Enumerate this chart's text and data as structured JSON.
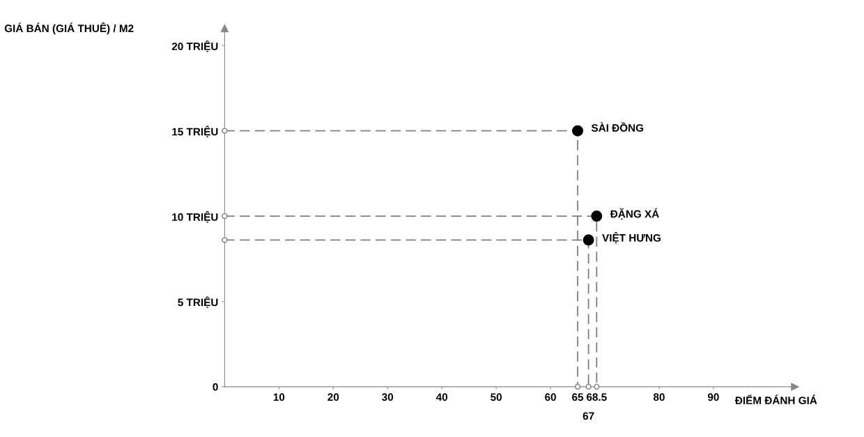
{
  "chart_data": {
    "type": "scatter",
    "xlabel": "ĐIỂM ĐÁNH GIÁ",
    "ylabel": "GIÁ BÁN (GIÁ THUÊ) / M2",
    "xlim": [
      0,
      105
    ],
    "ylim": [
      0,
      21
    ],
    "xticks": [
      10,
      20,
      30,
      40,
      50,
      60,
      65,
      {
        "value": 67,
        "label": null
      },
      68.5,
      80,
      90
    ],
    "annotations": [
      {
        "text": "67",
        "x": 67,
        "y": 0
      }
    ],
    "yticks": [
      0,
      {
        "value": 5,
        "label": "5 TRIỆU"
      },
      {
        "value": 10,
        "label": "10 TRIỆU"
      },
      {
        "value": 15,
        "label": "15 TRIỆU"
      },
      {
        "value": 20,
        "label": "20 TRIỆU"
      }
    ],
    "grid": false,
    "legend": false,
    "marker": "circle",
    "series": [
      {
        "type": "line",
        "color": "#7f7f7f",
        "line_style": "dashed",
        "x": [
          0,
          65,
          65
        ],
        "values": [
          15,
          15,
          0
        ]
      },
      {
        "type": "line",
        "color": "#7f7f7f",
        "line_style": "dashed",
        "x": [
          0,
          68.5,
          68.5
        ],
        "values": [
          10,
          10,
          0
        ]
      },
      {
        "type": "line",
        "color": "#7f7f7f",
        "line_style": "dashed",
        "x": [
          0,
          67,
          67
        ],
        "values": [
          8.6,
          8.6,
          0
        ]
      },
      {
        "name": "SÀI ĐỒNG",
        "color": "#000000",
        "x": [
          65
        ],
        "values": [
          15
        ]
      },
      {
        "name": "ĐẶNG XÁ",
        "color": "#000000",
        "x": [
          68.5
        ],
        "values": [
          10
        ]
      },
      {
        "name": "VIỆT HƯNG",
        "color": "#000000",
        "x": [
          67
        ],
        "values": [
          8.6
        ]
      }
    ]
  }
}
